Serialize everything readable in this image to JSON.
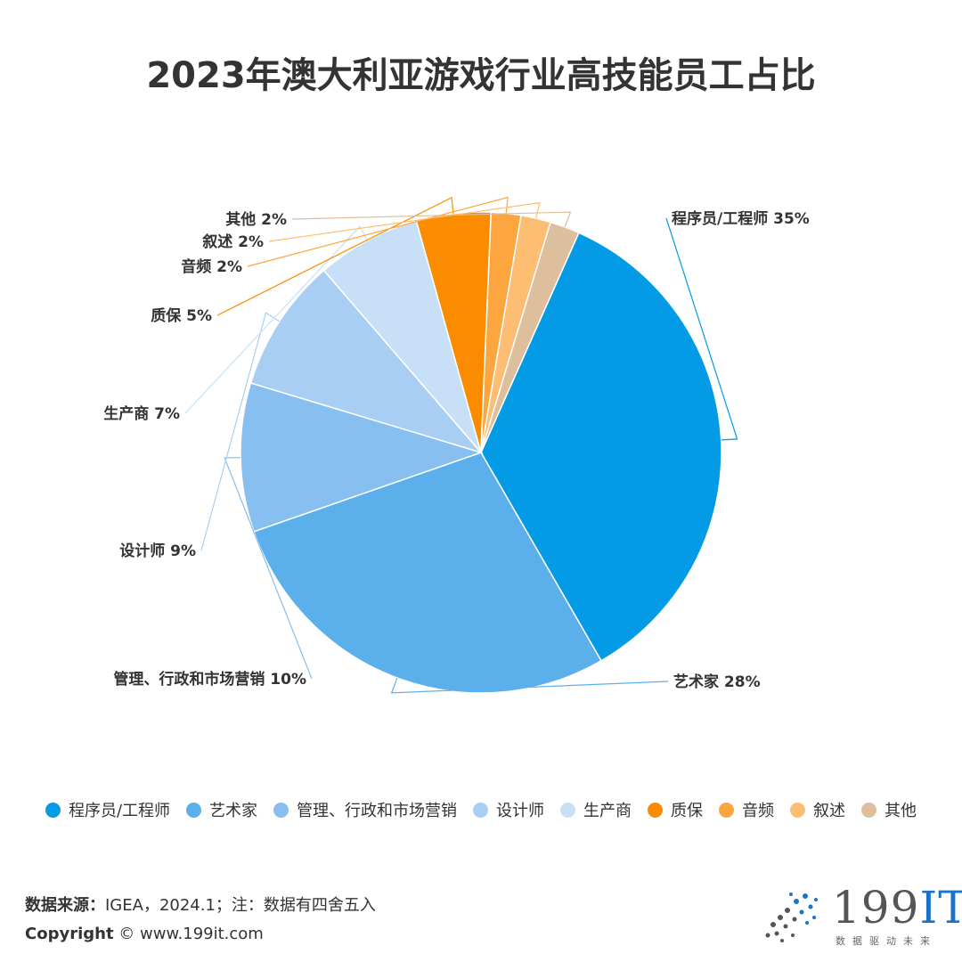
{
  "chart_data": {
    "type": "pie",
    "title": "2023年澳大利亚游戏行业高技能员工占比",
    "slices": [
      {
        "name": "程序员/工程师",
        "value": 35,
        "label": "程序员/工程师 35%",
        "color": "#039BE5"
      },
      {
        "name": "艺术家",
        "value": 28,
        "label": "艺术家 28%",
        "color": "#5BB0EC"
      },
      {
        "name": "管理、行政和市场营销",
        "value": 10,
        "label": "管理、行政和市场营销 10%",
        "color": "#86BFF0"
      },
      {
        "name": "设计师",
        "value": 9,
        "label": "设计师 9%",
        "color": "#A9CEF4"
      },
      {
        "name": "生产商",
        "value": 7,
        "label": "生产商 7%",
        "color": "#C7E0F8"
      },
      {
        "name": "质保",
        "value": 5,
        "label": "质保 5%",
        "color": "#FB8C00"
      },
      {
        "name": "音频",
        "value": 2,
        "label": "音频 2%",
        "color": "#FDA640"
      },
      {
        "name": "叙述",
        "value": 2,
        "label": "叙述 2%",
        "color": "#FDBE73"
      },
      {
        "name": "其他",
        "value": 2,
        "label": "其他 2%",
        "color": "#DEBF9D"
      }
    ],
    "legend_position": "bottom"
  },
  "footer": {
    "source_label": "数据来源：",
    "source_text": "IGEA，2024.1；注：数据有四舍五入",
    "copyright_label": "Copyright",
    "copyright_text": "© www.199it.com"
  },
  "logo": {
    "text_num": "199",
    "text_it": "IT",
    "sub": "数据驱动未来"
  }
}
